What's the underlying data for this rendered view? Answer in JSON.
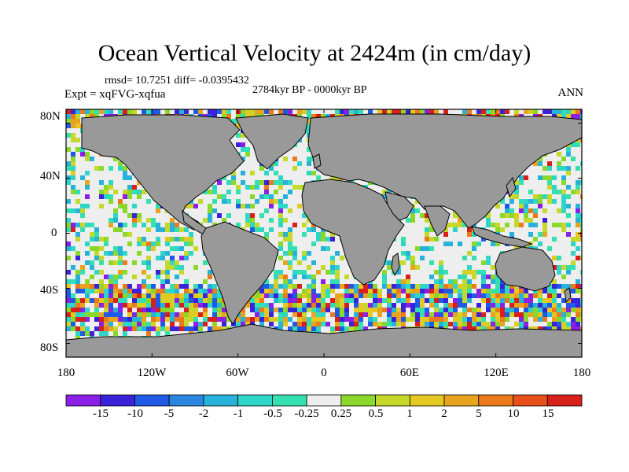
{
  "title": "Ocean Vertical Velocity at 2424m (in cm/day)",
  "stats": "rmsd= 10.7251 diff= -0.0395432",
  "period": "2784kyr BP - 0000kyr BP",
  "expt": "Expt = xqFVG-xqfua",
  "season": "ANN",
  "lat_labels": [
    "80N",
    "40N",
    "0",
    "40S",
    "80S"
  ],
  "lon_labels": [
    "180",
    "120W",
    "60W",
    "0",
    "60E",
    "120E",
    "180"
  ],
  "colorbar": {
    "labels": [
      "-15",
      "-10",
      "-5",
      "-2",
      "-1",
      "-0.5",
      "-0.25",
      "0.25",
      "0.5",
      "1",
      "2",
      "5",
      "10",
      "15"
    ],
    "colors": [
      "#8a1fe6",
      "#3a22d8",
      "#1f5ae6",
      "#2b86e0",
      "#27b3d9",
      "#2fd6c8",
      "#34e0b0",
      "#eeeeee",
      "#8ad82a",
      "#c6d82a",
      "#e6c823",
      "#e8a41f",
      "#ea7a1a",
      "#e8501a",
      "#d8201a"
    ]
  },
  "colors": {
    "land": "#999999",
    "coast": "#000000",
    "near_zero": "#eeeeee"
  }
}
